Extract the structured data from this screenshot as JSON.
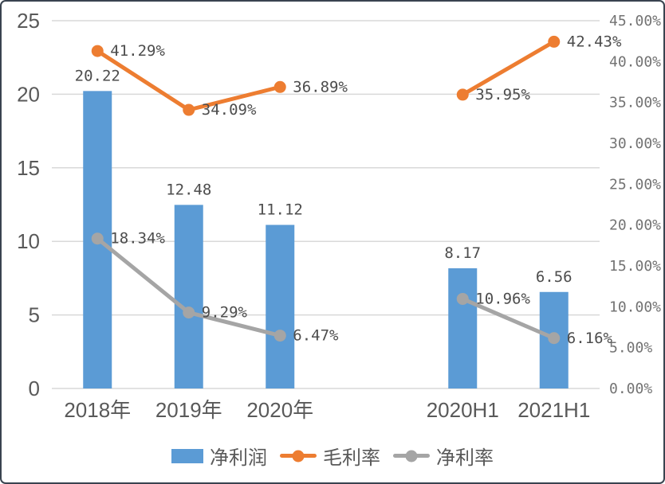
{
  "chart_data": {
    "type": "combo",
    "categories": [
      "2018年",
      "2019年",
      "2020年",
      "2020H1",
      "2021H1"
    ],
    "slot_index": [
      0,
      1,
      2,
      4,
      5
    ],
    "slot_count": 6,
    "series": [
      {
        "name": "净利润",
        "type": "bar",
        "axis": "left",
        "color": "#5B9BD5",
        "values": [
          20.22,
          12.48,
          11.12,
          8.17,
          6.56
        ],
        "labels": [
          "20.22",
          "12.48",
          "11.12",
          "8.17",
          "6.56"
        ]
      },
      {
        "name": "毛利率",
        "type": "line",
        "axis": "right",
        "color": "#ED7D31",
        "values": [
          41.29,
          34.09,
          36.89,
          35.95,
          42.43
        ],
        "labels": [
          "41.29%",
          "34.09%",
          "36.89%",
          "35.95%",
          "42.43%"
        ]
      },
      {
        "name": "净利率",
        "type": "line",
        "axis": "right",
        "color": "#A5A5A5",
        "values": [
          18.34,
          9.29,
          6.47,
          10.96,
          6.16
        ],
        "labels": [
          "18.34%",
          "9.29%",
          "6.47%",
          "10.96%",
          "6.16%"
        ]
      }
    ],
    "left_axis": {
      "min": 0,
      "max": 25,
      "tick_step": 5,
      "ticks": [
        "0",
        "5",
        "10",
        "15",
        "20",
        "25"
      ]
    },
    "right_axis": {
      "min": 0,
      "max": 45,
      "tick_step": 5,
      "ticks": [
        "0.00%",
        "5.00%",
        "10.00%",
        "15.00%",
        "20.00%",
        "25.00%",
        "30.00%",
        "35.00%",
        "40.00%",
        "45.00%"
      ]
    },
    "grid": true,
    "legend_position": "bottom",
    "legend": [
      {
        "label": "净利润",
        "marker": "square",
        "color": "#5B9BD5"
      },
      {
        "label": "毛利率",
        "marker": "line-dot",
        "color": "#ED7D31"
      },
      {
        "label": "净利率",
        "marker": "line-dot",
        "color": "#A5A5A5"
      }
    ]
  },
  "colors": {
    "bar_blue": "#5B9BD5",
    "line_orange": "#ED7D31",
    "line_gray": "#A5A5A5",
    "gridline": "#D9D9D9",
    "axis_text": "#595959",
    "data_label_text": "#4d4d4d",
    "frame_border": "#39434f",
    "background": "#FFFFFF"
  }
}
